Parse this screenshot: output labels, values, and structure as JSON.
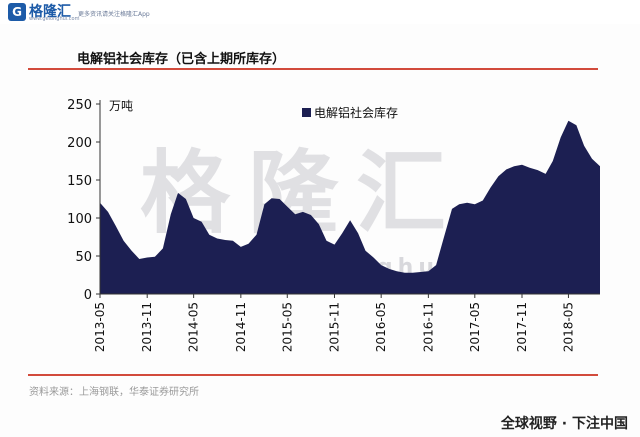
{
  "header": {
    "logo_icon": "G",
    "logo_text": "格隆汇",
    "logo_sub": "www.gelonghui.com",
    "tagline": "更多资讯请关注格隆汇App",
    "title": "电解铝社会库存（已含上期所库存）"
  },
  "footer": {
    "source": "资料来源：上海钢联，华泰证券研究所",
    "tagline": "全球视野 · 下注中国",
    "brand": "格隆汇"
  },
  "watermark": {
    "text": "格隆汇",
    "url": "www.gelonghui.com"
  },
  "colors": {
    "series_fill": "#1c1f52",
    "rule": "#d24b3c",
    "brand": "#1d5ba8"
  },
  "chart_data": {
    "type": "area",
    "title": "",
    "ylabel": "万吨",
    "ylim": [
      0,
      250
    ],
    "yticks": [
      0,
      50,
      100,
      150,
      200,
      250
    ],
    "xlabels": [
      "2013-05",
      "2013-11",
      "2014-05",
      "2014-11",
      "2015-05",
      "2015-11",
      "2016-05",
      "2016-11",
      "2017-05",
      "2017-11",
      "2018-05"
    ],
    "x_range": [
      "2013-05",
      "2018-09"
    ],
    "series": [
      {
        "name": "电解铝社会库存",
        "x": [
          "2013-05-01",
          "2013-06-01",
          "2013-07-01",
          "2013-08-01",
          "2013-09-01",
          "2013-10-01",
          "2013-11-01",
          "2013-12-01",
          "2014-01-01",
          "2014-02-01",
          "2014-03-01",
          "2014-04-01",
          "2014-05-01",
          "2014-06-01",
          "2014-07-01",
          "2014-08-01",
          "2014-09-01",
          "2014-10-01",
          "2014-11-01",
          "2014-12-01",
          "2015-01-01",
          "2015-02-01",
          "2015-03-01",
          "2015-04-01",
          "2015-05-01",
          "2015-06-01",
          "2015-07-01",
          "2015-08-01",
          "2015-09-01",
          "2015-10-01",
          "2015-11-01",
          "2015-12-01",
          "2016-01-01",
          "2016-02-01",
          "2016-03-01",
          "2016-04-01",
          "2016-05-01",
          "2016-06-01",
          "2016-07-01",
          "2016-08-01",
          "2016-09-01",
          "2016-10-01",
          "2016-11-01",
          "2016-12-01",
          "2017-01-01",
          "2017-02-01",
          "2017-03-01",
          "2017-04-01",
          "2017-05-01",
          "2017-06-01",
          "2017-07-01",
          "2017-08-01",
          "2017-09-01",
          "2017-10-01",
          "2017-11-01",
          "2017-12-01",
          "2018-01-01",
          "2018-02-01",
          "2018-03-01",
          "2018-04-01",
          "2018-05-01",
          "2018-06-01",
          "2018-07-01",
          "2018-08-01",
          "2018-09-01"
        ],
        "values": [
          120,
          108,
          90,
          70,
          57,
          46,
          48,
          49,
          60,
          105,
          133,
          125,
          100,
          95,
          78,
          73,
          71,
          70,
          62,
          66,
          78,
          118,
          126,
          125,
          115,
          105,
          108,
          104,
          92,
          70,
          65,
          80,
          97,
          80,
          57,
          48,
          38,
          33,
          30,
          28,
          28,
          29,
          30,
          38,
          75,
          112,
          118,
          120,
          118,
          123,
          140,
          155,
          164,
          168,
          170,
          166,
          163,
          158,
          175,
          206,
          228,
          222,
          195,
          178,
          168
        ]
      }
    ]
  }
}
